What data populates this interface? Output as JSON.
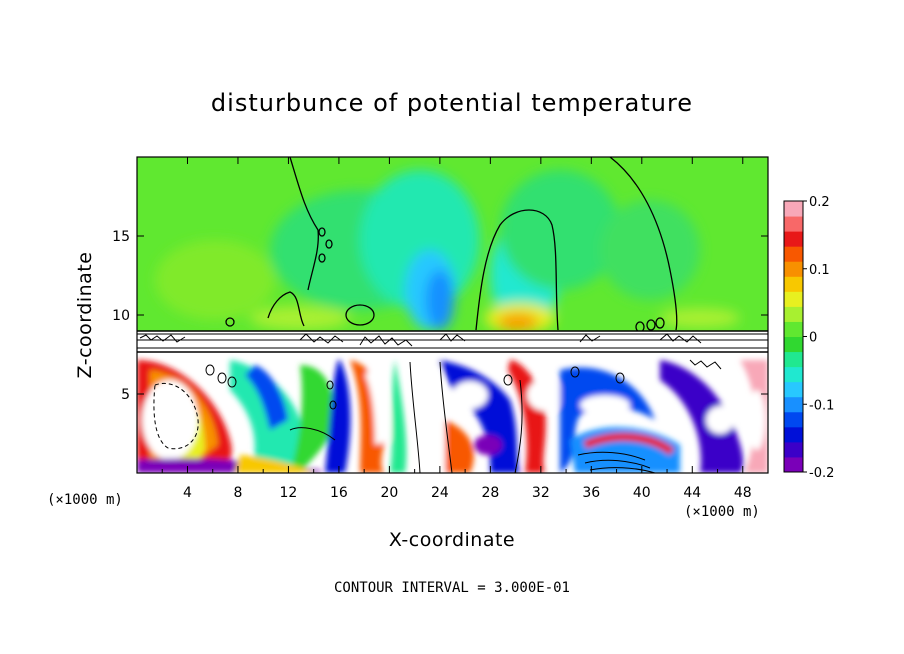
{
  "chart_data": {
    "type": "heatmap",
    "title": "disturbunce of potential temperature",
    "xlabel": "X-coordinate",
    "ylabel": "Z-coordinate",
    "x_unit_left": "(×1000 m)",
    "x_unit_right": "(×1000 m)",
    "xlim": [
      0,
      50
    ],
    "ylim": [
      0,
      20
    ],
    "x_ticks": [
      4,
      8,
      12,
      16,
      20,
      24,
      28,
      32,
      36,
      40,
      44,
      48
    ],
    "y_ticks": [
      5,
      10,
      15
    ],
    "colorbar": {
      "range": [
        -0.2,
        0.2
      ],
      "tick_values": [
        0.2,
        0.1,
        0,
        -0.1,
        -0.2
      ],
      "tick_labels": [
        "0.2",
        "0.1",
        "0",
        "-0.1",
        "-0.2"
      ],
      "colors": [
        "#7a00b8",
        "#3b00c8",
        "#0010d8",
        "#0048f0",
        "#1890ff",
        "#28c8ff",
        "#20e8d0",
        "#20e890",
        "#30d830",
        "#60e830",
        "#a8f030",
        "#e8f020",
        "#f8c800",
        "#f89000",
        "#f85800",
        "#e81818",
        "#f86868",
        "#f8a8b8"
      ]
    },
    "upper_layer": {
      "z_range": [
        9,
        20
      ],
      "background_value": 0.02
    },
    "anomalies_upper": [
      {
        "name": "cold plume",
        "x": 24.5,
        "z": 11.2,
        "value": -0.09
      },
      {
        "name": "warm bulb",
        "x": 30.5,
        "z": 10.1,
        "value": 0.09
      },
      {
        "name": "cool column",
        "x": 34,
        "z": 13,
        "value": -0.02
      }
    ],
    "lower_layer": {
      "z_range": [
        0,
        7.8
      ],
      "description_value_range": [
        -0.2,
        0.2
      ]
    },
    "contour_interval": "3.000E-01",
    "contour_note": "CONTOUR INTERVAL = 3.000E-01"
  }
}
